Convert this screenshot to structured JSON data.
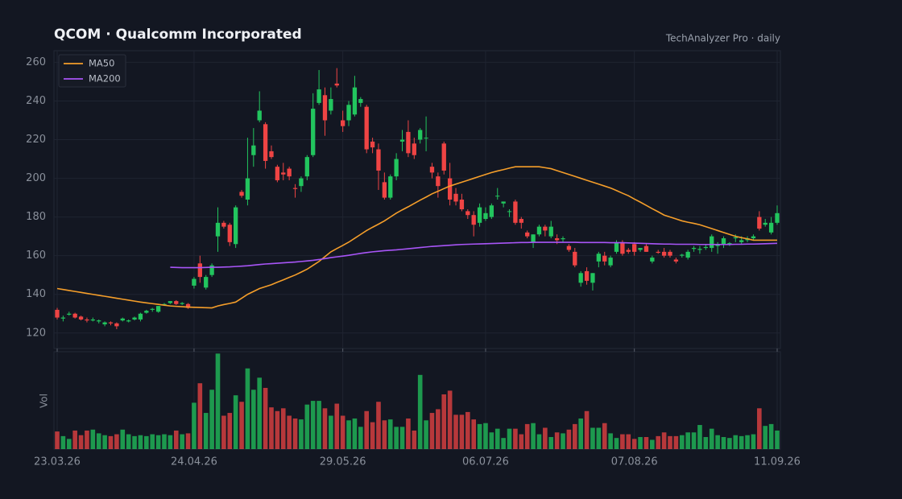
{
  "chart_data": {
    "type": "candlestick",
    "title": "QCOM · Qualcomm Incorporated",
    "subtitle": "TechAnalyzer Pro · daily",
    "categories": [
      "23.03.26",
      null,
      null,
      null,
      null,
      null,
      null,
      null,
      null,
      null,
      null,
      null,
      null,
      null,
      null,
      null,
      null,
      null,
      null,
      null,
      null,
      null,
      null,
      "24.04.26",
      null,
      null,
      null,
      null,
      null,
      null,
      null,
      null,
      null,
      null,
      null,
      null,
      null,
      null,
      null,
      null,
      null,
      null,
      null,
      null,
      null,
      null,
      null,
      null,
      "29.05.26",
      null,
      null,
      null,
      null,
      null,
      null,
      null,
      null,
      null,
      null,
      null,
      null,
      null,
      null,
      null,
      null,
      null,
      null,
      null,
      null,
      null,
      null,
      null,
      "06.07.26",
      null,
      null,
      null,
      null,
      null,
      null,
      null,
      null,
      null,
      null,
      null,
      null,
      null,
      null,
      null,
      null,
      null,
      null,
      null,
      null,
      null,
      null,
      null,
      null,
      "07.08.26",
      null,
      null,
      null,
      null,
      null,
      null,
      null,
      null,
      null,
      null,
      null,
      null,
      null,
      null,
      null,
      null,
      null,
      null,
      null,
      null,
      null,
      null,
      null,
      "11.09.26"
    ],
    "open": [
      132,
      127.5,
      129.5,
      130,
      128.5,
      127,
      126.5,
      126,
      124.5,
      125.5,
      125,
      126.5,
      126,
      127,
      127,
      130.5,
      132,
      131,
      134.5,
      135.5,
      136.5,
      135,
      135,
      144.5,
      156,
      143.5,
      150,
      170,
      177,
      176,
      166,
      193,
      189,
      212,
      230,
      228,
      214,
      206,
      203,
      205,
      195,
      196,
      201,
      212,
      239,
      243,
      235,
      249,
      230,
      230,
      233,
      239,
      237,
      219,
      215,
      198,
      190,
      201,
      219,
      224,
      218,
      220,
      221,
      206,
      201,
      218,
      200,
      192,
      189,
      183,
      181,
      177,
      179,
      180,
      191,
      187,
      183,
      188,
      179,
      172,
      167,
      171,
      175,
      170,
      169,
      168.5,
      165,
      162,
      146,
      152,
      146,
      157,
      160,
      155,
      162,
      167,
      163,
      166,
      163,
      165,
      157,
      162,
      162,
      162,
      158,
      160,
      159,
      163.5,
      163,
      164,
      164,
      165,
      166,
      166,
      169,
      167,
      168,
      169,
      180,
      176,
      172,
      177
    ],
    "high": [
      133,
      129,
      131,
      130.5,
      129,
      128,
      128,
      127,
      126,
      126,
      125.5,
      128,
      127,
      128.5,
      130.5,
      132,
      133,
      134,
      135.5,
      136.5,
      137,
      136,
      135.5,
      149,
      160,
      150,
      156,
      185,
      178,
      177,
      186,
      194,
      221,
      226,
      245,
      229,
      217,
      207,
      208,
      206,
      197,
      201,
      212,
      244,
      256,
      247,
      247,
      257,
      235,
      240,
      253,
      242,
      238,
      221,
      218,
      203,
      202,
      213,
      225,
      230,
      221,
      226,
      232,
      208,
      203,
      219,
      208,
      195,
      192,
      184,
      183,
      187,
      185,
      187,
      195,
      188,
      184,
      189,
      180,
      173,
      171,
      176,
      176,
      178,
      171,
      170,
      166,
      164,
      152,
      154,
      151,
      162,
      162,
      160,
      168,
      168,
      164,
      167,
      164,
      166,
      160,
      163,
      164,
      163,
      159,
      161,
      163,
      165,
      165,
      166,
      171,
      167,
      170,
      167,
      171,
      170,
      170,
      171,
      183,
      179,
      180,
      186
    ],
    "low": [
      127,
      126,
      129,
      127.5,
      126.5,
      125.5,
      126,
      125,
      123.5,
      124,
      122,
      126,
      125.5,
      126.5,
      126,
      130,
      131,
      130.5,
      134,
      135,
      134.5,
      134.5,
      132.5,
      143,
      146,
      142.5,
      149,
      162,
      174,
      165,
      164,
      190,
      186,
      206,
      229,
      205,
      210,
      198,
      199,
      199,
      190,
      193,
      199,
      211,
      238,
      222,
      233,
      247,
      224,
      227,
      232,
      237,
      213,
      213,
      194,
      189,
      189,
      199,
      214,
      211,
      210,
      218,
      214,
      200,
      190,
      202,
      186,
      186,
      183,
      179,
      170,
      175,
      178,
      179,
      189,
      185,
      180,
      176,
      174,
      169,
      164,
      170,
      170,
      169,
      166,
      167,
      162,
      154,
      144,
      145,
      142,
      154,
      155,
      154,
      161,
      160,
      161,
      160,
      162,
      162,
      156,
      161,
      159,
      159,
      156,
      159,
      158,
      162,
      161,
      163,
      162,
      161,
      164,
      165,
      167,
      166,
      167,
      168,
      173,
      175,
      171,
      176
    ],
    "close": [
      128,
      128,
      130,
      128,
      127,
      126.5,
      127,
      126.5,
      125.5,
      125,
      123.5,
      127.5,
      126.5,
      128,
      130,
      131.5,
      132.5,
      134,
      135,
      136.5,
      135,
      135.5,
      133,
      148,
      149,
      149,
      155,
      177,
      175,
      167,
      185,
      191,
      200,
      217,
      235,
      209,
      211,
      199,
      202,
      201,
      194.5,
      200,
      211,
      236,
      246,
      230,
      241,
      248,
      227,
      238,
      247,
      241,
      215,
      216,
      204,
      190,
      201,
      210,
      220,
      213,
      212,
      225,
      221,
      203,
      196,
      204,
      189,
      188,
      184,
      181,
      176,
      185,
      182,
      186,
      191,
      188,
      183,
      177,
      177,
      170,
      171,
      175,
      173,
      175,
      168,
      169,
      163,
      155,
      151,
      147,
      151,
      161,
      157,
      159,
      167,
      161,
      162,
      162,
      164,
      162,
      159,
      161.5,
      160,
      160,
      157,
      160.5,
      162,
      164,
      163.5,
      164.5,
      170,
      165.5,
      169,
      166.5,
      169.5,
      168,
      169,
      170,
      174,
      177,
      177,
      182
    ],
    "up_color": "#22c55e",
    "down_color": "#ef4444",
    "ylim": [
      112,
      266
    ],
    "yticks": [
      120,
      140,
      160,
      180,
      200,
      220,
      240,
      260
    ],
    "grid": true,
    "legend": "upper left",
    "series": [
      {
        "name": "MA50",
        "color": "#f59e2a",
        "values": [
          143,
          142.5,
          142,
          141.5,
          141,
          140.5,
          140,
          139.5,
          139,
          138.5,
          138,
          137.5,
          137,
          136.5,
          136,
          135.6,
          135.2,
          134.8,
          134.4,
          134,
          133.8,
          133.6,
          133.4,
          133.3,
          133.2,
          133.1,
          133,
          134,
          134.7,
          135.3,
          136,
          138,
          140,
          141.5,
          143,
          144,
          145,
          146.3,
          147.5,
          148.8,
          150,
          151.5,
          153,
          155,
          157,
          159.5,
          162,
          163.7,
          165.3,
          167,
          169,
          171,
          173,
          174.7,
          176.3,
          178,
          180,
          182,
          183.7,
          185.3,
          187,
          188.7,
          190.3,
          192,
          193.3,
          194.7,
          196,
          197,
          198,
          199,
          200,
          201,
          202,
          203,
          203.8,
          204.5,
          205.3,
          206,
          206,
          206,
          206,
          206,
          205.5,
          205,
          204,
          203,
          202,
          201,
          200,
          199,
          198,
          197,
          196,
          195,
          193.7,
          192.3,
          191,
          189.3,
          187.7,
          186,
          184.3,
          182.7,
          181,
          180,
          179,
          178,
          177.3,
          176.7,
          176,
          175,
          174,
          173,
          172,
          171,
          170,
          169.3,
          168.7,
          168,
          168,
          168,
          168,
          168
        ]
      },
      {
        "name": "MA200",
        "color": "#a855f7",
        "values": [
          null,
          null,
          null,
          null,
          null,
          null,
          null,
          null,
          null,
          null,
          null,
          null,
          null,
          null,
          null,
          null,
          null,
          null,
          null,
          154,
          153.9,
          153.8,
          153.8,
          153.8,
          153.8,
          153.9,
          154,
          154,
          154.1,
          154.2,
          154.4,
          154.6,
          154.8,
          155.1,
          155.4,
          155.7,
          155.9,
          156.1,
          156.3,
          156.5,
          156.7,
          157,
          157.3,
          157.6,
          158,
          158.5,
          159,
          159.4,
          159.8,
          160.2,
          160.7,
          161.2,
          161.6,
          162,
          162.3,
          162.6,
          162.8,
          163,
          163.3,
          163.6,
          163.9,
          164.2,
          164.5,
          164.8,
          165,
          165.2,
          165.4,
          165.6,
          165.8,
          165.9,
          166,
          166.1,
          166.2,
          166.3,
          166.4,
          166.5,
          166.6,
          166.7,
          166.8,
          166.8,
          166.9,
          166.9,
          166.9,
          166.9,
          166.9,
          166.9,
          166.9,
          166.9,
          166.8,
          166.8,
          166.8,
          166.8,
          166.8,
          166.7,
          166.7,
          166.7,
          166.6,
          166.5,
          166.4,
          166.3,
          166.2,
          166.1,
          166,
          166,
          165.9,
          165.9,
          165.9,
          165.9,
          165.8,
          165.8,
          165.8,
          165.8,
          165.8,
          165.8,
          165.9,
          165.9,
          166,
          166,
          166.1,
          166.2,
          166.3,
          166.4
        ]
      }
    ],
    "volume": {
      "label": "Vol",
      "ylim": [
        0,
        105
      ],
      "values": [
        19,
        14,
        11,
        20,
        15,
        20,
        21,
        17,
        15,
        14,
        16,
        21,
        16,
        14,
        15,
        14,
        16,
        15,
        16,
        15,
        20,
        16,
        17,
        50,
        71,
        39,
        64,
        103,
        36,
        39,
        58,
        51,
        87,
        64,
        77,
        66,
        45,
        41,
        44,
        36,
        33,
        32,
        48,
        52,
        52,
        44,
        36,
        49,
        36,
        31,
        33,
        24,
        41,
        29,
        51,
        31,
        32,
        24,
        24,
        33,
        20,
        80,
        31,
        39,
        43,
        59,
        63,
        37,
        37,
        40,
        32,
        27,
        28,
        18,
        22,
        12,
        22,
        22,
        16,
        27,
        28,
        16,
        23,
        13,
        18,
        17,
        21,
        27,
        33,
        41,
        23,
        23,
        28,
        17,
        12,
        16,
        16,
        11,
        13,
        13,
        10,
        14,
        18,
        14,
        14,
        15,
        18,
        18,
        26,
        13,
        22,
        15,
        13,
        12,
        15,
        14,
        15,
        16,
        44,
        25,
        27,
        20
      ]
    }
  }
}
